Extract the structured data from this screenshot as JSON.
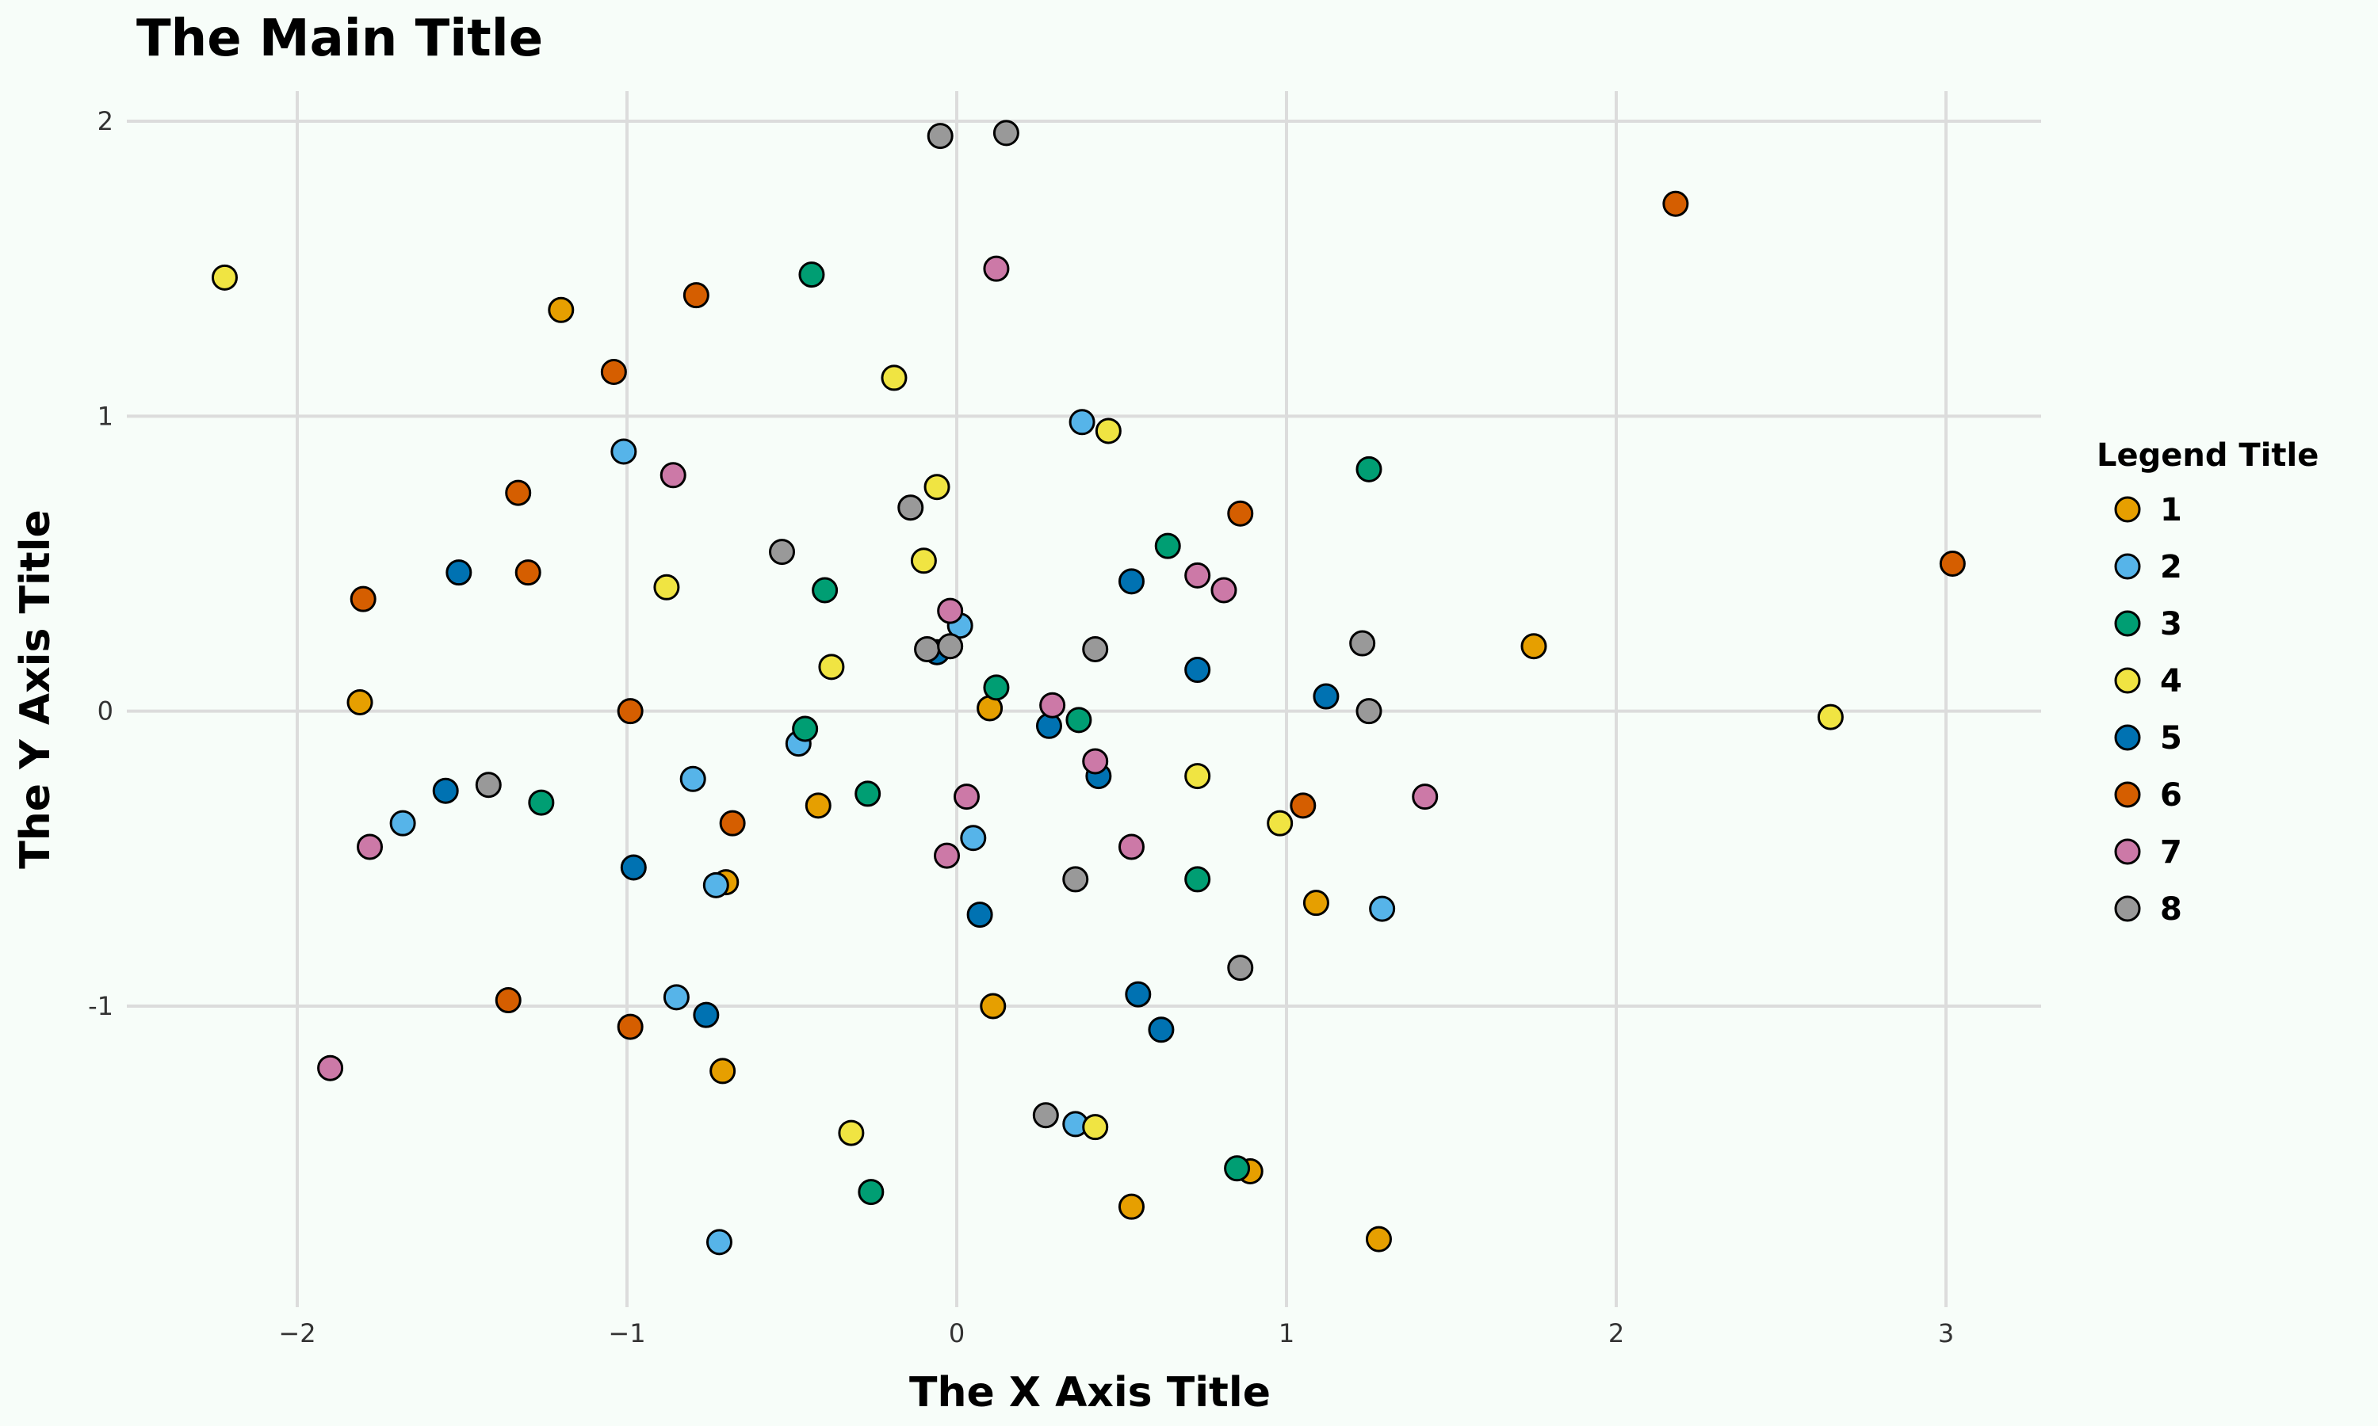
{
  "chart_data": {
    "type": "scatter",
    "title": "The Main Title",
    "xlabel": "The X Axis Title",
    "ylabel": "The Y Axis Title",
    "xlim": [
      -2.5,
      3.3
    ],
    "ylim": [
      -1.95,
      2.1
    ],
    "xticks": [
      -2,
      -1,
      0,
      1,
      2,
      3
    ],
    "yticks": [
      -1,
      0,
      1,
      2
    ],
    "xtick_labels": [
      "−2",
      "−1",
      "0",
      "1",
      "2",
      "3"
    ],
    "ytick_labels": [
      "-1",
      "0",
      "1",
      "2"
    ],
    "grid": true,
    "legend": {
      "title": "Legend Title",
      "position": "right"
    },
    "series": [
      {
        "name": "1",
        "color": "#E69F00",
        "points": [
          [
            -1.2,
            1.36
          ],
          [
            -1.81,
            0.03
          ],
          [
            -0.7,
            -0.58
          ],
          [
            -0.71,
            -1.22
          ],
          [
            -0.42,
            -0.32
          ],
          [
            0.1,
            0.01
          ],
          [
            0.11,
            -1.0
          ],
          [
            0.53,
            -1.68
          ],
          [
            0.89,
            -1.56
          ],
          [
            1.09,
            -0.65
          ],
          [
            1.28,
            -1.79
          ],
          [
            1.75,
            0.22
          ]
        ]
      },
      {
        "name": "2",
        "color": "#56B4E9",
        "points": [
          [
            -1.01,
            0.88
          ],
          [
            -0.8,
            -0.23
          ],
          [
            -0.73,
            -0.59
          ],
          [
            -0.85,
            -0.97
          ],
          [
            -0.72,
            -1.8
          ],
          [
            -0.48,
            -0.11
          ],
          [
            0.01,
            0.29
          ],
          [
            0.05,
            -0.43
          ],
          [
            0.36,
            -1.4
          ],
          [
            0.38,
            0.98
          ],
          [
            1.29,
            -0.67
          ],
          [
            -1.68,
            -0.38
          ]
        ]
      },
      {
        "name": "3",
        "color": "#009E73",
        "points": [
          [
            -0.44,
            1.48
          ],
          [
            -0.4,
            0.41
          ],
          [
            -0.46,
            -0.06
          ],
          [
            -0.27,
            -0.28
          ],
          [
            -0.26,
            -1.63
          ],
          [
            0.12,
            0.08
          ],
          [
            0.37,
            -0.03
          ],
          [
            0.64,
            0.56
          ],
          [
            0.73,
            -0.57
          ],
          [
            0.85,
            -1.55
          ],
          [
            1.25,
            0.82
          ],
          [
            -1.26,
            -0.31
          ]
        ]
      },
      {
        "name": "4",
        "color": "#F0E442",
        "points": [
          [
            -2.22,
            1.47
          ],
          [
            -0.88,
            0.42
          ],
          [
            -0.38,
            0.15
          ],
          [
            -0.19,
            1.13
          ],
          [
            -0.06,
            0.76
          ],
          [
            -0.1,
            0.51
          ],
          [
            0.42,
            -1.41
          ],
          [
            0.46,
            0.95
          ],
          [
            0.73,
            -0.22
          ],
          [
            0.98,
            -0.38
          ],
          [
            2.65,
            -0.02
          ],
          [
            -0.32,
            -1.43
          ]
        ]
      },
      {
        "name": "5",
        "color": "#0072B2",
        "points": [
          [
            -1.51,
            0.47
          ],
          [
            -1.55,
            -0.27
          ],
          [
            -0.98,
            -0.53
          ],
          [
            -0.76,
            -1.03
          ],
          [
            -0.06,
            0.2
          ],
          [
            0.07,
            -0.69
          ],
          [
            0.28,
            -0.05
          ],
          [
            0.43,
            -0.22
          ],
          [
            0.53,
            0.44
          ],
          [
            0.55,
            -0.96
          ],
          [
            0.62,
            -1.08
          ],
          [
            0.73,
            0.14
          ],
          [
            1.12,
            0.05
          ]
        ]
      },
      {
        "name": "6",
        "color": "#D55E00",
        "points": [
          [
            -1.8,
            0.38
          ],
          [
            -1.33,
            0.74
          ],
          [
            -1.3,
            0.47
          ],
          [
            -1.04,
            1.15
          ],
          [
            -0.79,
            1.41
          ],
          [
            -0.99,
            0.0
          ],
          [
            -0.99,
            -1.07
          ],
          [
            -1.36,
            -0.98
          ],
          [
            -0.68,
            -0.38
          ],
          [
            0.86,
            0.67
          ],
          [
            1.05,
            -0.32
          ],
          [
            2.18,
            1.72
          ],
          [
            3.02,
            0.5
          ]
        ]
      },
      {
        "name": "7",
        "color": "#CC79A7",
        "points": [
          [
            -1.9,
            -1.21
          ],
          [
            -1.78,
            -0.46
          ],
          [
            -0.86,
            0.8
          ],
          [
            -0.02,
            0.34
          ],
          [
            0.12,
            1.5
          ],
          [
            0.03,
            -0.29
          ],
          [
            -0.03,
            -0.49
          ],
          [
            0.29,
            0.02
          ],
          [
            0.42,
            -0.17
          ],
          [
            0.53,
            -0.46
          ],
          [
            0.73,
            0.46
          ],
          [
            0.81,
            0.41
          ],
          [
            1.42,
            -0.29
          ]
        ]
      },
      {
        "name": "8",
        "color": "#999999",
        "points": [
          [
            -0.05,
            1.95
          ],
          [
            0.15,
            1.96
          ],
          [
            -0.53,
            0.54
          ],
          [
            -0.14,
            0.69
          ],
          [
            -0.09,
            0.21
          ],
          [
            -0.02,
            0.22
          ],
          [
            0.42,
            0.21
          ],
          [
            0.27,
            -1.37
          ],
          [
            0.36,
            -0.57
          ],
          [
            0.86,
            -0.87
          ],
          [
            1.23,
            0.23
          ],
          [
            1.25,
            0.0
          ],
          [
            -1.42,
            -0.25
          ]
        ]
      }
    ]
  }
}
